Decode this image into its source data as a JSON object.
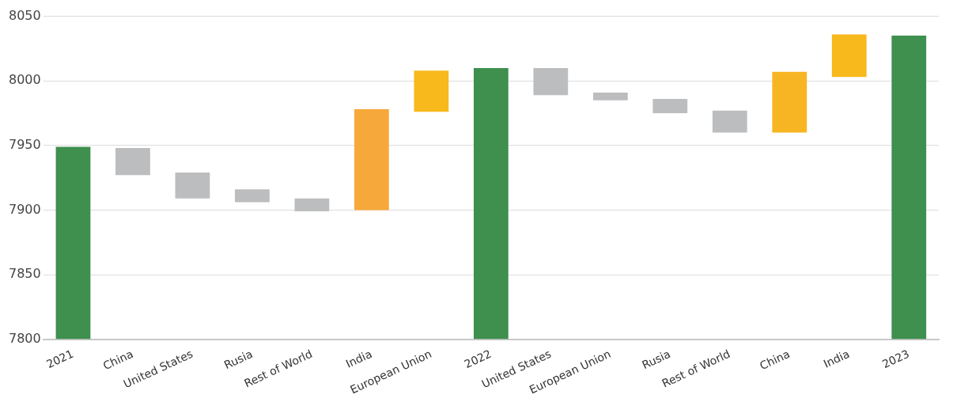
{
  "chart_data": {
    "type": "bar",
    "categories": [
      "2021",
      "China",
      "United States",
      "Rusia",
      "Rest of World",
      "India",
      "European Union",
      "2022",
      "United States",
      "European Union",
      "Rusia",
      "Rest of World",
      "China",
      "India",
      "2023"
    ],
    "values": [
      149,
      21,
      20,
      10,
      10,
      78,
      32,
      210,
      21,
      6,
      11,
      17,
      47,
      33,
      235
    ],
    "base": [
      7800,
      7927,
      7909,
      7906,
      7899,
      7900,
      7976,
      7800,
      7989,
      7985,
      7975,
      7960,
      7960,
      8003,
      7800
    ],
    "colors": [
      "#3f8f4e",
      "#bcbdbf",
      "#bcbdbf",
      "#bcbdbf",
      "#bcbdbf",
      "#f7a83a",
      "#f7b91c",
      "#3f8f4e",
      "#bcbdbf",
      "#bcbdbf",
      "#bcbdbf",
      "#bcbdbf",
      "#f7b523",
      "#f7b91c",
      "#3f8f4e"
    ],
    "ylim": [
      7800,
      8050
    ],
    "yticks": [
      7800,
      7850,
      7900,
      7950,
      8000,
      8050
    ],
    "grid": "y",
    "legend": false
  }
}
